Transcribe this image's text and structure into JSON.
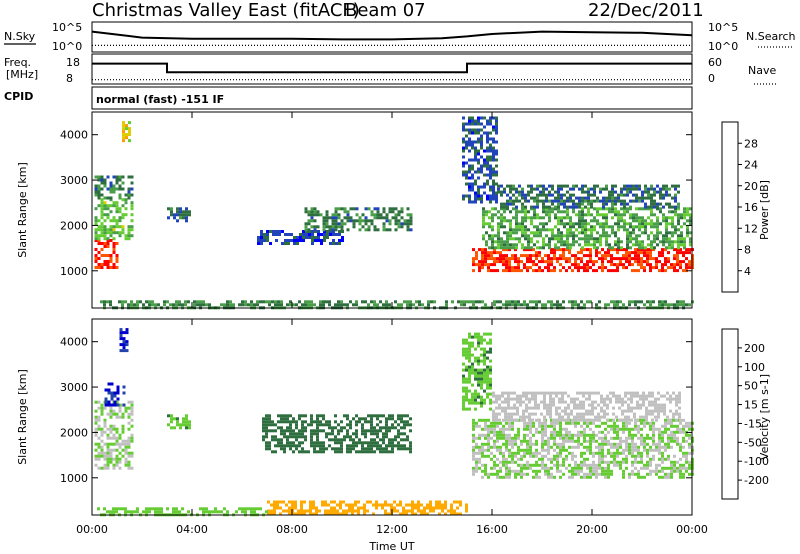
{
  "header": {
    "title": "Christmas Valley East (fitACF)",
    "beam": "Beam 07",
    "date": "22/Dec/2011"
  },
  "strip_labels": {
    "nsky": "N.Sky",
    "nsearch": "N.Search",
    "freq_line1": "Freq.",
    "freq_line2": "[MHz]",
    "nave": "Nave",
    "cpid": "CPID",
    "cpid_value": "normal (fast) -151 IF",
    "noise_ticks_left": [
      "10^5",
      "10^0"
    ],
    "noise_ticks_right": [
      "10^5",
      "10^0"
    ],
    "freq_ticks": [
      "18",
      "8"
    ],
    "nave_ticks": [
      "60",
      "0"
    ]
  },
  "chart_data": [
    {
      "type": "line",
      "name": "noise",
      "series": [
        {
          "name": "N.Sky",
          "x": [
            0,
            2,
            4,
            6,
            8,
            10,
            12,
            14,
            15,
            16,
            18,
            20,
            22,
            24
          ],
          "y": [
            3.4,
            2.4,
            2.2,
            2.2,
            2.2,
            2.1,
            2.1,
            2.3,
            2.6,
            3.0,
            3.4,
            3.3,
            3.2,
            2.8
          ]
        },
        {
          "name": "N.Search",
          "x": [
            0,
            24
          ],
          "y": [
            1.1,
            1.1
          ]
        }
      ],
      "xlim": [
        0,
        24
      ]
    },
    {
      "type": "line",
      "name": "frequency",
      "series": [
        {
          "name": "Freq",
          "x": [
            0,
            3,
            3,
            15,
            15,
            24
          ],
          "y": [
            15.5,
            15.5,
            11.5,
            11.5,
            15.5,
            15.5
          ]
        },
        {
          "name": "Nave",
          "x": [
            0,
            24
          ],
          "y": [
            10,
            10
          ]
        }
      ],
      "xlim": [
        0,
        24
      ]
    },
    {
      "type": "heatmap",
      "name": "power",
      "ylabel": "Slant Range [km]",
      "ylim": [
        180,
        4500
      ],
      "xlim": [
        0,
        24
      ],
      "yticks": [
        "1000",
        "2000",
        "3000",
        "4000"
      ],
      "colorbar": {
        "label": "Power [dB]",
        "ticks": [
          "4",
          "8",
          "12",
          "16",
          "20",
          "24",
          "28"
        ],
        "range": [
          0,
          30
        ],
        "colors": [
          "#0000ff",
          "#2244bb",
          "#2f6f3f",
          "#4a9e4a",
          "#66cc33",
          "#ddcc00",
          "#ff9900",
          "#ff5500",
          "#ff0000"
        ]
      },
      "regions": [
        {
          "t": [
            0.1,
            1.0
          ],
          "r": [
            1100,
            1700
          ],
          "v": 27
        },
        {
          "t": [
            0.1,
            1.6
          ],
          "r": [
            1700,
            2600
          ],
          "v": 14
        },
        {
          "t": [
            0.1,
            1.6
          ],
          "r": [
            2600,
            3100
          ],
          "v": 9
        },
        {
          "t": [
            1.2,
            1.5
          ],
          "r": [
            3800,
            4300
          ],
          "v": 18
        },
        {
          "t": [
            3.0,
            3.9
          ],
          "r": [
            2100,
            2400
          ],
          "v": 8
        },
        {
          "t": [
            6.6,
            10.0
          ],
          "r": [
            1600,
            1900
          ],
          "v": 5
        },
        {
          "t": [
            8.5,
            12.8
          ],
          "r": [
            1900,
            2400
          ],
          "v": 9
        },
        {
          "t": [
            15.2,
            24
          ],
          "r": [
            1000,
            1500
          ],
          "v": 27
        },
        {
          "t": [
            15.6,
            24
          ],
          "r": [
            1500,
            2400
          ],
          "v": 12
        },
        {
          "t": [
            16.2,
            23.5
          ],
          "r": [
            2400,
            2900
          ],
          "v": 8
        },
        {
          "t": [
            14.8,
            16.2
          ],
          "r": [
            2500,
            4400
          ],
          "v": 6
        },
        {
          "t": [
            0.2,
            24
          ],
          "r": [
            200,
            350
          ],
          "v": 10
        }
      ]
    },
    {
      "type": "heatmap",
      "name": "velocity",
      "ylabel": "Slant Range [km]",
      "xlabel": "Time UT",
      "ylim": [
        180,
        4500
      ],
      "xlim": [
        0,
        24
      ],
      "yticks": [
        "1000",
        "2000",
        "3000",
        "4000"
      ],
      "xticks": [
        "00:00",
        "04:00",
        "08:00",
        "12:00",
        "16:00",
        "20:00",
        "00:00"
      ],
      "colorbar": {
        "label": "Velocity [m s-1]",
        "ticks": [
          "200",
          "100",
          "50",
          "15",
          "-15",
          "-50",
          "-100",
          "-200"
        ],
        "colors": [
          "#0000cc",
          "#2244aa",
          "#2f6f3f",
          "#66cc33",
          "#c0c0c0",
          "#ffaa00",
          "#ff6600",
          "#ff3300",
          "#ff0000"
        ]
      },
      "regions": [
        {
          "t": [
            0.1,
            1.6
          ],
          "r": [
            1200,
            2700
          ],
          "v": 0
        },
        {
          "t": [
            0.5,
            1.3
          ],
          "r": [
            2600,
            3100
          ],
          "v": 150
        },
        {
          "t": [
            1.1,
            1.4
          ],
          "r": [
            3800,
            4300
          ],
          "v": 150
        },
        {
          "t": [
            3.0,
            3.9
          ],
          "r": [
            2100,
            2400
          ],
          "v": 30
        },
        {
          "t": [
            6.8,
            12.8
          ],
          "r": [
            1600,
            2400
          ],
          "v": 40
        },
        {
          "t": [
            15.2,
            24
          ],
          "r": [
            1000,
            2300
          ],
          "v": 0
        },
        {
          "t": [
            16.0,
            23.5
          ],
          "r": [
            2300,
            2900
          ],
          "v": -20
        },
        {
          "t": [
            14.8,
            16.0
          ],
          "r": [
            2500,
            4200
          ],
          "v": 30
        },
        {
          "t": [
            7.0,
            15.0
          ],
          "r": [
            200,
            500
          ],
          "v": -40
        },
        {
          "t": [
            0.2,
            7.0
          ],
          "r": [
            200,
            350
          ],
          "v": 20
        }
      ]
    }
  ]
}
